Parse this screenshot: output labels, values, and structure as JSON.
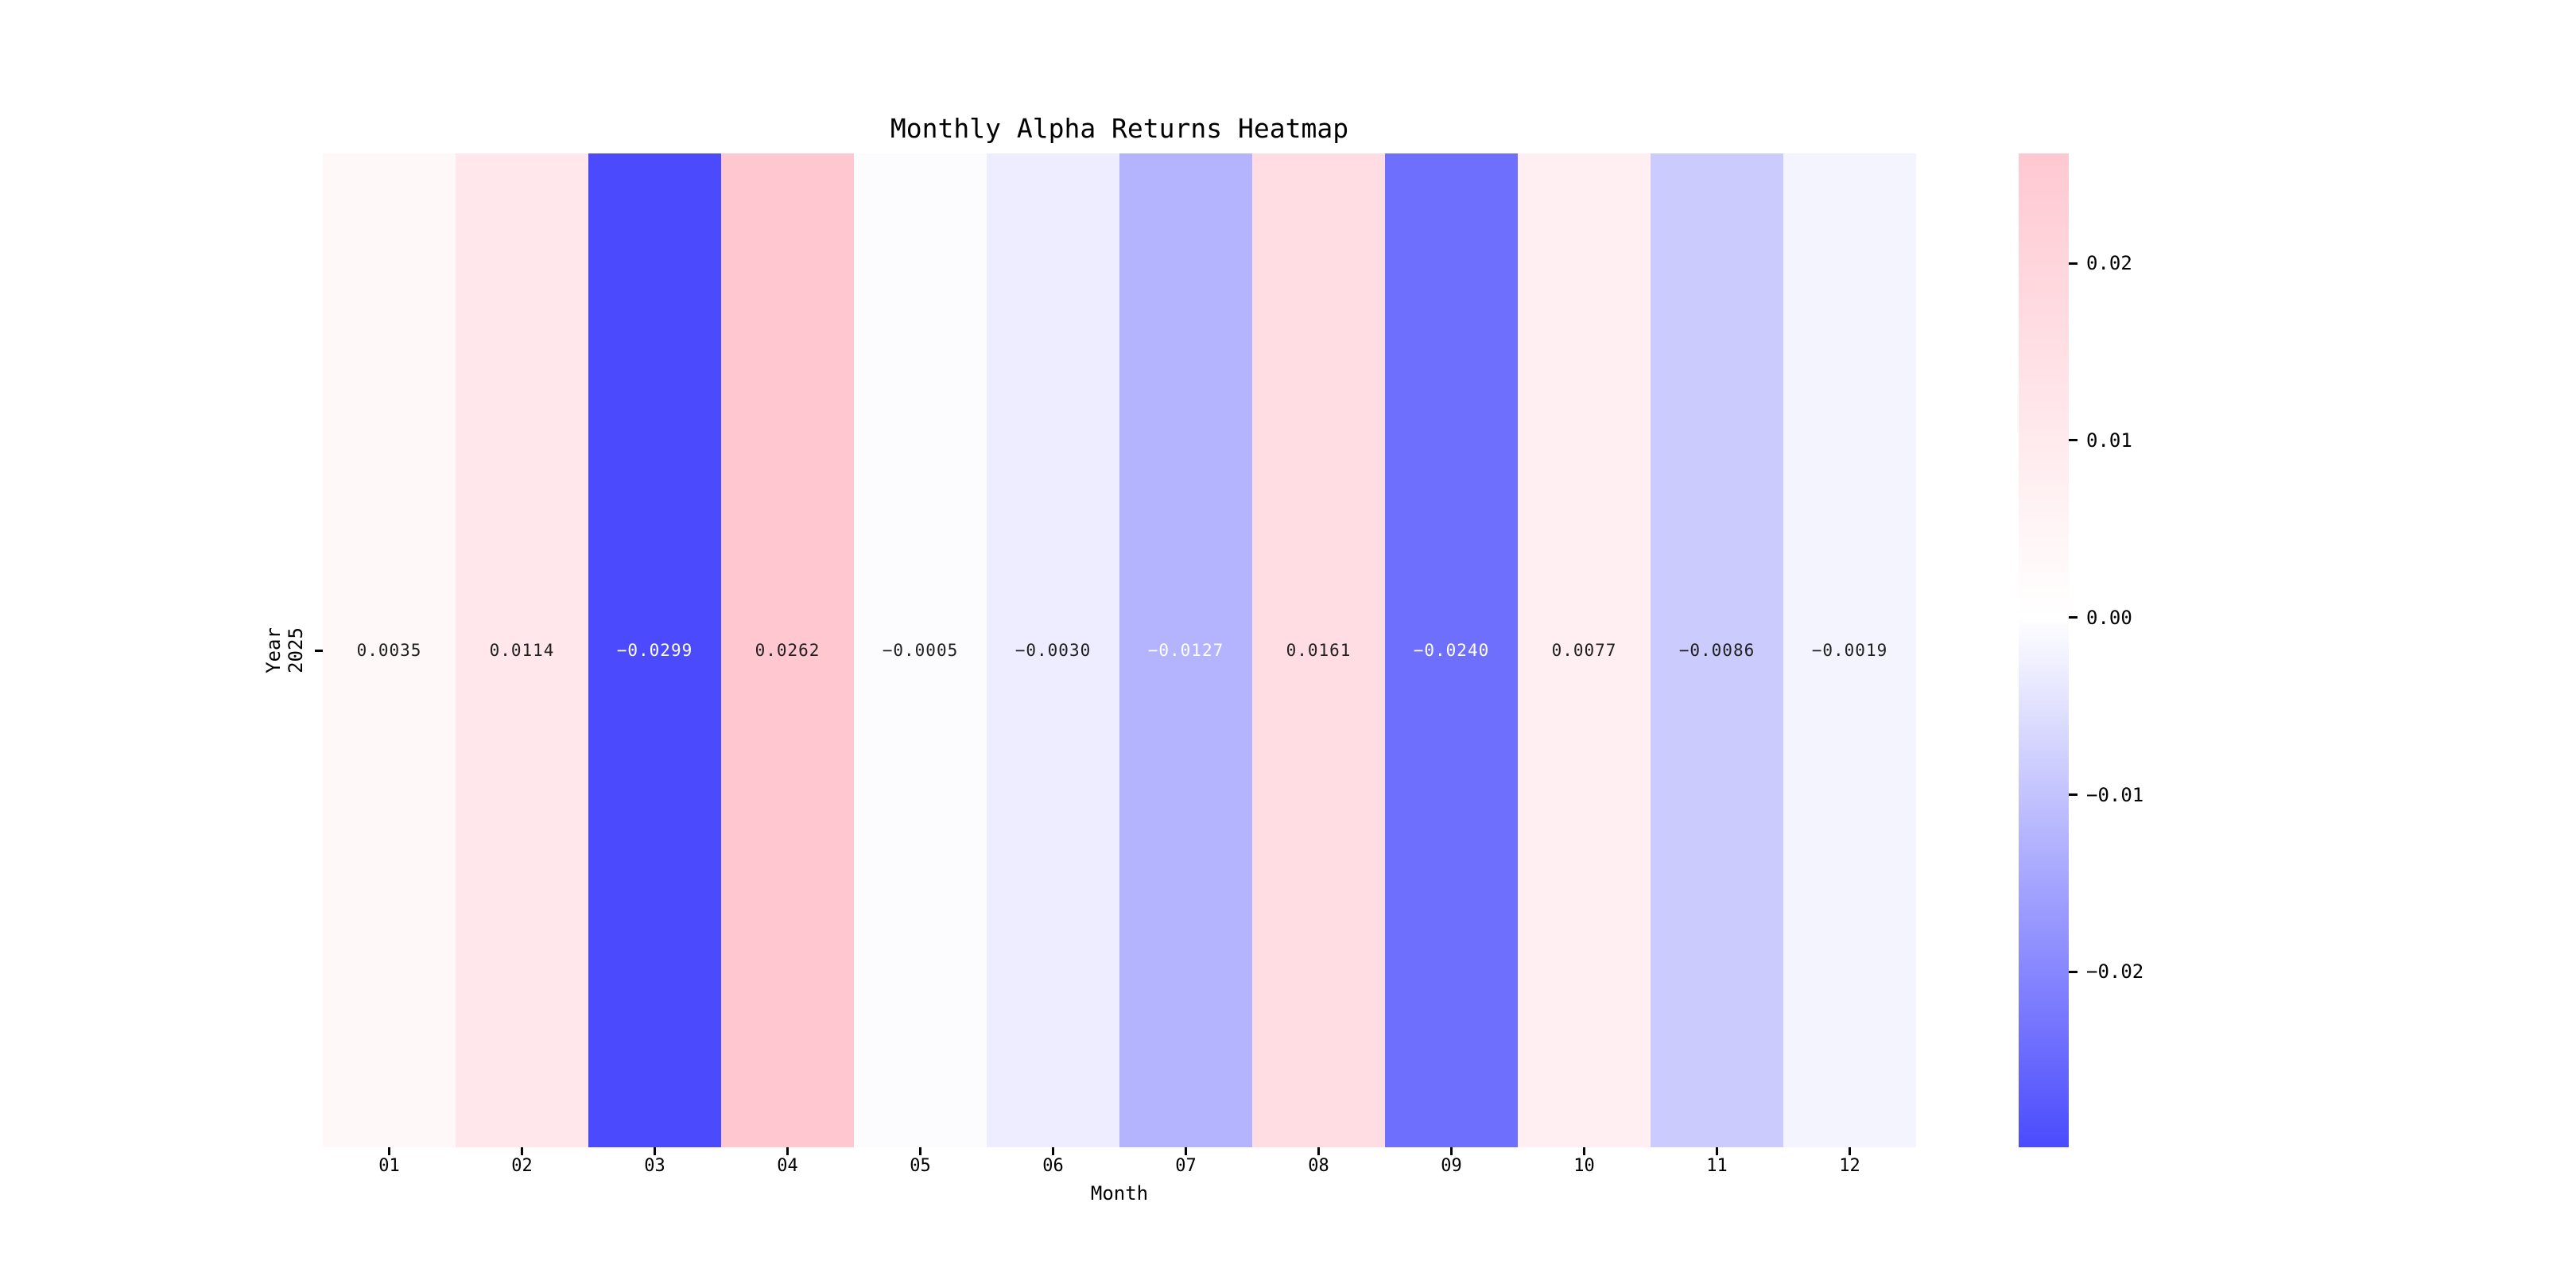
{
  "title": "Monthly Alpha Returns Heatmap",
  "chart_data": {
    "type": "heatmap",
    "title": "Monthly Alpha Returns Heatmap",
    "xlabel": "Month",
    "ylabel": "Year",
    "rows": [
      "2025"
    ],
    "columns": [
      "01",
      "02",
      "03",
      "04",
      "05",
      "06",
      "07",
      "08",
      "09",
      "10",
      "11",
      "12"
    ],
    "values": [
      [
        0.0035,
        0.0114,
        -0.0299,
        0.0262,
        -0.0005,
        -0.003,
        -0.0127,
        0.0161,
        -0.024,
        0.0077,
        -0.0086,
        -0.0019
      ]
    ],
    "cell_labels": [
      [
        "0.0035",
        "0.0114",
        "−0.0299",
        "0.0262",
        "−0.0005",
        "−0.0030",
        "−0.0127",
        "0.0161",
        "−0.0240",
        "0.0077",
        "−0.0086",
        "−0.0019"
      ]
    ],
    "colormap": {
      "negative_end": "#4B4BFD",
      "center": "#FFFFFF",
      "positive_end": "#FFC0CB"
    },
    "colorbar": {
      "vmin": -0.0299,
      "vmax": 0.0262,
      "tick_values": [
        0.02,
        0.01,
        0.0,
        -0.01,
        -0.02
      ],
      "tick_labels": [
        "0.02",
        "0.01",
        "0.00",
        "−0.01",
        "−0.02"
      ],
      "position": "right"
    },
    "annotation_text_colors": {
      "light": "#FFFFFF",
      "dark": "#1F1F1F",
      "white_text_threshold": -0.01
    },
    "grid": false,
    "background": "#FFFFFF"
  }
}
